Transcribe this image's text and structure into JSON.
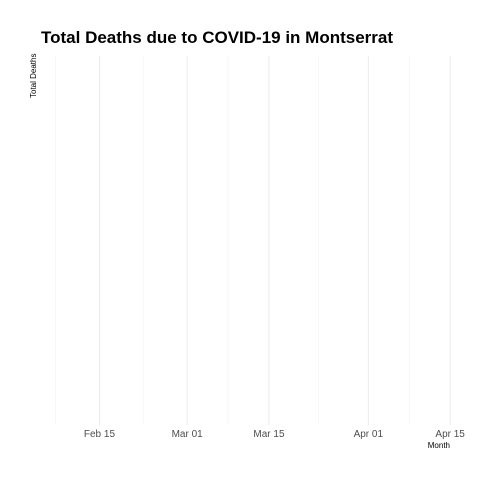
{
  "chart_data": {
    "type": "line",
    "title": "Total Deaths due to COVID-19 in Montserrat",
    "xlabel": "Month",
    "ylabel": "Total Deaths",
    "x_axis_type": "date",
    "xlim": [
      "2020-02-05",
      "2020-04-16"
    ],
    "x_ticks": [
      {
        "date": "2020-02-15",
        "label": "Feb 15"
      },
      {
        "date": "2020-03-01",
        "label": "Mar 01"
      },
      {
        "date": "2020-03-15",
        "label": "Mar 15"
      },
      {
        "date": "2020-04-01",
        "label": "Apr 01"
      },
      {
        "date": "2020-04-15",
        "label": "Apr 15"
      }
    ],
    "y_ticks": [],
    "grid": true,
    "series": []
  },
  "colors": {
    "grid_major": "#ebebeb",
    "grid_minor": "#f2f2f2",
    "tick_text": "#4d4d4d",
    "title_text": "#000000"
  }
}
